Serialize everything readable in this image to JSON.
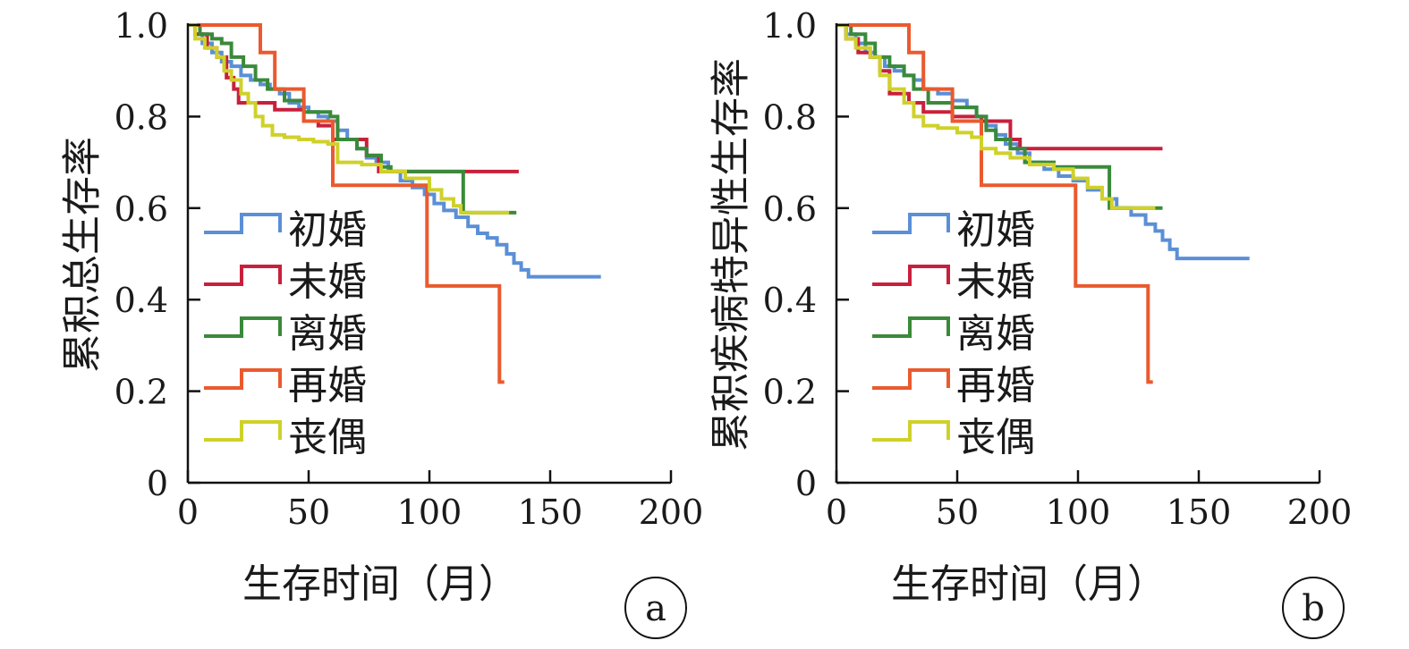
{
  "colors": {
    "初婚": "#5b8fd6",
    "未婚": "#c8203c",
    "离婚": "#3a8a3a",
    "再婚": "#ea5a2e",
    "丧偶": "#cfd12a",
    "axis": "#111111"
  },
  "chart_data": [
    {
      "type": "line",
      "step": true,
      "panel_label": "a",
      "title": "",
      "xlabel": "生存时间（月）",
      "ylabel": "累积总生存率",
      "xlim": [
        0,
        200
      ],
      "ylim": [
        0,
        1.0
      ],
      "xticks": [
        0,
        50,
        100,
        150,
        200
      ],
      "xtick_labels": [
        "0",
        "50",
        "100",
        "150",
        "200"
      ],
      "yticks": [
        0,
        0.2,
        0.4,
        0.6,
        0.8,
        1.0
      ],
      "ytick_labels": [
        "0",
        "0.2",
        "0.4",
        "0.6",
        "0.8",
        "1.0"
      ],
      "grid": false,
      "legend_position": "lower-left",
      "series": [
        {
          "name": "初婚",
          "points": [
            [
              0,
              1
            ],
            [
              3,
              0.98
            ],
            [
              6,
              0.96
            ],
            [
              10,
              0.94
            ],
            [
              14,
              0.92
            ],
            [
              18,
              0.91
            ],
            [
              22,
              0.89
            ],
            [
              26,
              0.88
            ],
            [
              30,
              0.87
            ],
            [
              34,
              0.86
            ],
            [
              38,
              0.85
            ],
            [
              42,
              0.83
            ],
            [
              46,
              0.82
            ],
            [
              50,
              0.81
            ],
            [
              54,
              0.8
            ],
            [
              58,
              0.79
            ],
            [
              62,
              0.77
            ],
            [
              66,
              0.75
            ],
            [
              70,
              0.73
            ],
            [
              74,
              0.71
            ],
            [
              78,
              0.7
            ],
            [
              83,
              0.68
            ],
            [
              88,
              0.66
            ],
            [
              93,
              0.645
            ],
            [
              98,
              0.63
            ],
            [
              102,
              0.61
            ],
            [
              106,
              0.595
            ],
            [
              111,
              0.58
            ],
            [
              116,
              0.56
            ],
            [
              120,
              0.545
            ],
            [
              124,
              0.535
            ],
            [
              128,
              0.52
            ],
            [
              132,
              0.5
            ],
            [
              135,
              0.48
            ],
            [
              138,
              0.465
            ],
            [
              141,
              0.45
            ],
            [
              171,
              0.45
            ]
          ]
        },
        {
          "name": "未婚",
          "points": [
            [
              0,
              1
            ],
            [
              3,
              0.98
            ],
            [
              8,
              0.95
            ],
            [
              12,
              0.93
            ],
            [
              16,
              0.885
            ],
            [
              19,
              0.86
            ],
            [
              21,
              0.83
            ],
            [
              30,
              0.83
            ],
            [
              36,
              0.815
            ],
            [
              48,
              0.79
            ],
            [
              54,
              0.78
            ],
            [
              60,
              0.75
            ],
            [
              74,
              0.715
            ],
            [
              79,
              0.68
            ],
            [
              137,
              0.68
            ]
          ]
        },
        {
          "name": "离婚",
          "points": [
            [
              0,
              1
            ],
            [
              5,
              0.98
            ],
            [
              10,
              0.97
            ],
            [
              14,
              0.96
            ],
            [
              18,
              0.93
            ],
            [
              23,
              0.91
            ],
            [
              28,
              0.88
            ],
            [
              33,
              0.86
            ],
            [
              40,
              0.835
            ],
            [
              48,
              0.81
            ],
            [
              59,
              0.8
            ],
            [
              62,
              0.75
            ],
            [
              70,
              0.73
            ],
            [
              74,
              0.715
            ],
            [
              80,
              0.69
            ],
            [
              84,
              0.68
            ],
            [
              114,
              0.68
            ],
            [
              114,
              0.59
            ],
            [
              136,
              0.59
            ]
          ]
        },
        {
          "name": "再婚",
          "points": [
            [
              0,
              1
            ],
            [
              30,
              1
            ],
            [
              30,
              0.94
            ],
            [
              36,
              0.86
            ],
            [
              48,
              0.79
            ],
            [
              60,
              0.65
            ],
            [
              99,
              0.65
            ],
            [
              99,
              0.43
            ],
            [
              129,
              0.43
            ],
            [
              129,
              0.22
            ],
            [
              131,
              0.22
            ]
          ]
        },
        {
          "name": "丧偶",
          "points": [
            [
              0,
              1
            ],
            [
              3,
              0.97
            ],
            [
              7,
              0.95
            ],
            [
              12,
              0.93
            ],
            [
              15,
              0.9
            ],
            [
              18,
              0.88
            ],
            [
              22,
              0.85
            ],
            [
              25,
              0.83
            ],
            [
              28,
              0.8
            ],
            [
              31,
              0.78
            ],
            [
              35,
              0.76
            ],
            [
              40,
              0.755
            ],
            [
              46,
              0.75
            ],
            [
              52,
              0.745
            ],
            [
              58,
              0.74
            ],
            [
              62,
              0.7
            ],
            [
              72,
              0.695
            ],
            [
              80,
              0.68
            ],
            [
              90,
              0.665
            ],
            [
              100,
              0.64
            ],
            [
              105,
              0.62
            ],
            [
              110,
              0.605
            ],
            [
              113,
              0.59
            ],
            [
              133,
              0.59
            ]
          ]
        }
      ]
    },
    {
      "type": "line",
      "step": true,
      "panel_label": "b",
      "title": "",
      "xlabel": "生存时间（月）",
      "ylabel": "累积疾病特异性生存率",
      "xlim": [
        0,
        200
      ],
      "ylim": [
        0,
        1.0
      ],
      "xticks": [
        0,
        50,
        100,
        150,
        200
      ],
      "xtick_labels": [
        "0",
        "50",
        "100",
        "150",
        "200"
      ],
      "yticks": [
        0,
        0.2,
        0.4,
        0.6,
        0.8,
        1.0
      ],
      "ytick_labels": [
        "0",
        "0.2",
        "0.4",
        "0.6",
        "0.8",
        "1.0"
      ],
      "grid": false,
      "legend_position": "lower-left",
      "series": [
        {
          "name": "初婚",
          "points": [
            [
              0,
              1
            ],
            [
              4,
              0.98
            ],
            [
              8,
              0.96
            ],
            [
              12,
              0.94
            ],
            [
              16,
              0.93
            ],
            [
              20,
              0.91
            ],
            [
              24,
              0.9
            ],
            [
              28,
              0.89
            ],
            [
              32,
              0.88
            ],
            [
              36,
              0.86
            ],
            [
              42,
              0.85
            ],
            [
              48,
              0.835
            ],
            [
              54,
              0.82
            ],
            [
              58,
              0.8
            ],
            [
              62,
              0.78
            ],
            [
              66,
              0.76
            ],
            [
              70,
              0.74
            ],
            [
              75,
              0.72
            ],
            [
              80,
              0.7
            ],
            [
              86,
              0.685
            ],
            [
              92,
              0.67
            ],
            [
              98,
              0.66
            ],
            [
              104,
              0.64
            ],
            [
              110,
              0.62
            ],
            [
              116,
              0.6
            ],
            [
              122,
              0.585
            ],
            [
              128,
              0.565
            ],
            [
              132,
              0.55
            ],
            [
              135,
              0.53
            ],
            [
              138,
              0.51
            ],
            [
              141,
              0.49
            ],
            [
              171,
              0.49
            ]
          ]
        },
        {
          "name": "未婚",
          "points": [
            [
              0,
              1
            ],
            [
              4,
              0.97
            ],
            [
              9,
              0.94
            ],
            [
              14,
              0.93
            ],
            [
              18,
              0.9
            ],
            [
              22,
              0.85
            ],
            [
              30,
              0.83
            ],
            [
              36,
              0.81
            ],
            [
              48,
              0.8
            ],
            [
              60,
              0.79
            ],
            [
              72,
              0.75
            ],
            [
              76,
              0.73
            ],
            [
              135,
              0.73
            ]
          ]
        },
        {
          "name": "离婚",
          "points": [
            [
              0,
              1
            ],
            [
              6,
              0.98
            ],
            [
              12,
              0.96
            ],
            [
              16,
              0.93
            ],
            [
              22,
              0.91
            ],
            [
              28,
              0.89
            ],
            [
              32,
              0.86
            ],
            [
              38,
              0.83
            ],
            [
              48,
              0.82
            ],
            [
              58,
              0.8
            ],
            [
              62,
              0.77
            ],
            [
              66,
              0.75
            ],
            [
              72,
              0.73
            ],
            [
              78,
              0.7
            ],
            [
              90,
              0.69
            ],
            [
              113,
              0.69
            ],
            [
              113,
              0.6
            ],
            [
              135,
              0.6
            ]
          ]
        },
        {
          "name": "再婚",
          "points": [
            [
              0,
              1
            ],
            [
              30,
              1
            ],
            [
              30,
              0.94
            ],
            [
              36,
              0.86
            ],
            [
              48,
              0.79
            ],
            [
              60,
              0.65
            ],
            [
              99,
              0.65
            ],
            [
              99,
              0.43
            ],
            [
              129,
              0.43
            ],
            [
              129,
              0.22
            ],
            [
              131,
              0.22
            ]
          ]
        },
        {
          "name": "丧偶",
          "points": [
            [
              0,
              1
            ],
            [
              4,
              0.97
            ],
            [
              8,
              0.95
            ],
            [
              14,
              0.93
            ],
            [
              18,
              0.89
            ],
            [
              22,
              0.86
            ],
            [
              28,
              0.83
            ],
            [
              32,
              0.8
            ],
            [
              36,
              0.78
            ],
            [
              42,
              0.775
            ],
            [
              50,
              0.765
            ],
            [
              56,
              0.755
            ],
            [
              60,
              0.73
            ],
            [
              66,
              0.72
            ],
            [
              72,
              0.71
            ],
            [
              80,
              0.695
            ],
            [
              90,
              0.685
            ],
            [
              98,
              0.665
            ],
            [
              104,
              0.645
            ],
            [
              110,
              0.62
            ],
            [
              114,
              0.6
            ],
            [
              132,
              0.6
            ]
          ]
        }
      ]
    }
  ]
}
